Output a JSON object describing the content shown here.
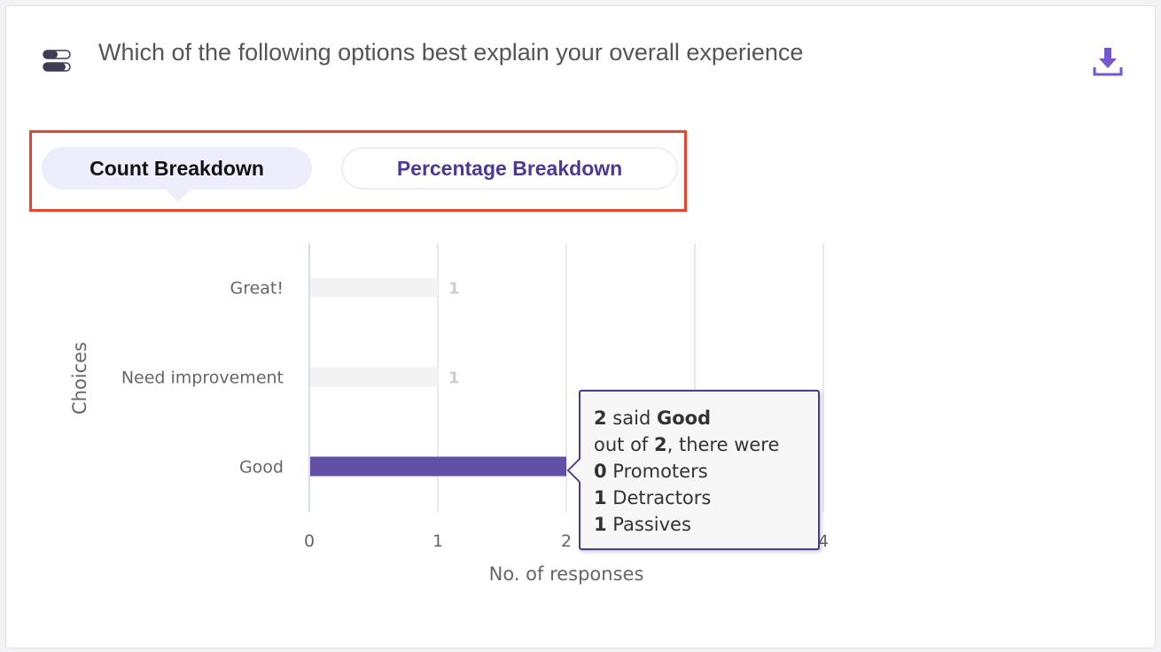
{
  "header": {
    "title": "Which of the following options best explain your overall experience",
    "menu_icon": "toggle-list-icon",
    "download_icon": "download-icon"
  },
  "tabs": [
    {
      "label": "Count Breakdown",
      "active": true
    },
    {
      "label": "Percentage Breakdown",
      "active": false
    }
  ],
  "colors": {
    "accent": "#4a3a96",
    "bar_active": "#6250a6",
    "bar_inactive": "#f3f3f3",
    "highlight_box": "#e8432d"
  },
  "chart_data": {
    "type": "bar",
    "orientation": "horizontal",
    "categories": [
      "Great!",
      "Need improvement",
      "Good"
    ],
    "values": [
      1,
      1,
      2
    ],
    "highlighted": "Good",
    "xlabel": "No. of responses",
    "ylabel": "Choices",
    "xlim": [
      0,
      4
    ],
    "xticks": [
      "0",
      "1",
      "2",
      "3",
      "4"
    ],
    "grid": true
  },
  "tooltip": {
    "count": "2",
    "said": " said ",
    "choice": "Good",
    "out_of_prefix": "out of ",
    "total": "2",
    "out_of_suffix": ", there were",
    "rows": [
      {
        "n": "0",
        "label": " Promoters"
      },
      {
        "n": "1",
        "label": " Detractors"
      },
      {
        "n": "1",
        "label": " Passives"
      }
    ]
  }
}
